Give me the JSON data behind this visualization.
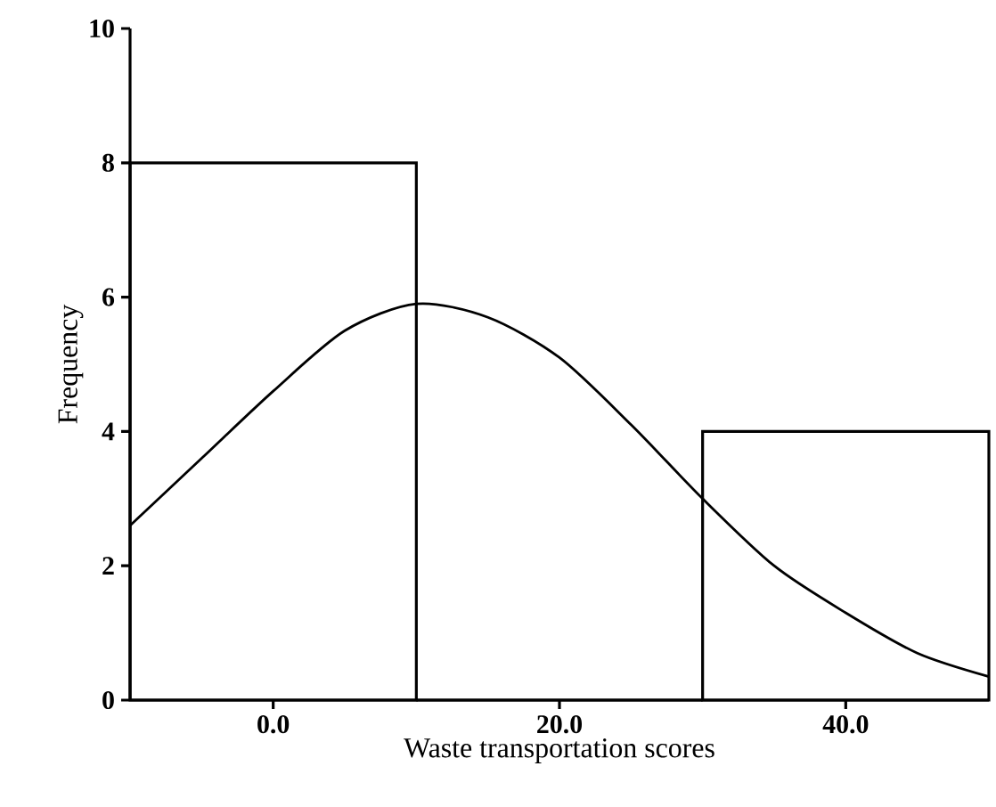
{
  "chart_data": {
    "type": "histogram",
    "xlabel": "Waste transportation scores",
    "ylabel": "Frequency",
    "xlim": [
      -10,
      50
    ],
    "ylim": [
      0,
      10
    ],
    "xticks": [
      {
        "value": 0,
        "label": "0.0"
      },
      {
        "value": 20,
        "label": "20.0"
      },
      {
        "value": 40,
        "label": "40.0"
      }
    ],
    "yticks": [
      0,
      2,
      4,
      6,
      8,
      10
    ],
    "grid": false,
    "color": "#000000",
    "bins": [
      -10,
      10,
      30,
      50
    ],
    "values": [
      8,
      0,
      4
    ],
    "series": [
      {
        "type": "line",
        "color": "#000000",
        "x": [
          -10,
          -5,
          0,
          5,
          10,
          15,
          20,
          25,
          30,
          35,
          40,
          45,
          50
        ],
        "values": [
          2.6,
          3.6,
          4.6,
          5.5,
          5.9,
          5.7,
          5.1,
          4.1,
          3.0,
          2.0,
          1.3,
          0.7,
          0.35
        ]
      }
    ]
  }
}
